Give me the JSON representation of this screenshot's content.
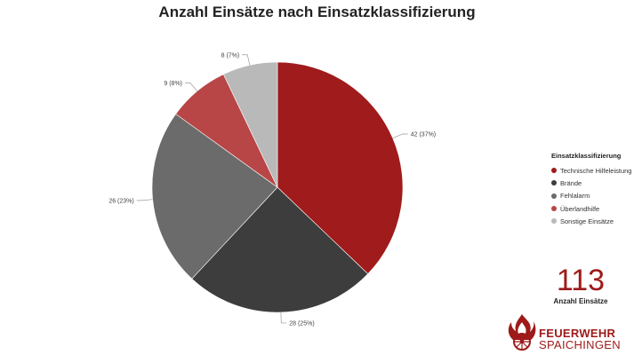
{
  "chart_data": {
    "type": "pie",
    "title": "Anzahl Einsätze nach Einsatzklassifizierung",
    "legend_title": "Einsatzklassifizierung",
    "legend_position": "right",
    "start_angle": "top",
    "direction": "clockwise",
    "slices": [
      {
        "name": "Technische Hilfeleistung",
        "value": 42,
        "label": "42 (37%)",
        "color": "#a01b1b"
      },
      {
        "name": "Brände",
        "value": 28,
        "label": "28 (25%)",
        "color": "#3d3d3d"
      },
      {
        "name": "Fehlalarm",
        "value": 26,
        "label": "26 (23%)",
        "color": "#6b6b6b"
      },
      {
        "name": "Überlandhilfe",
        "value": 9,
        "label": "9 (8%)",
        "color": "#b84646"
      },
      {
        "name": "Sonstige Einsätze",
        "value": 8,
        "label": "8 (7%)",
        "color": "#b9b9b9"
      }
    ]
  },
  "kpi": {
    "value": "113",
    "label": "Anzahl Einsätze"
  },
  "logo": {
    "name": "FEUERWEHR",
    "city": "SPAICHINGEN"
  }
}
